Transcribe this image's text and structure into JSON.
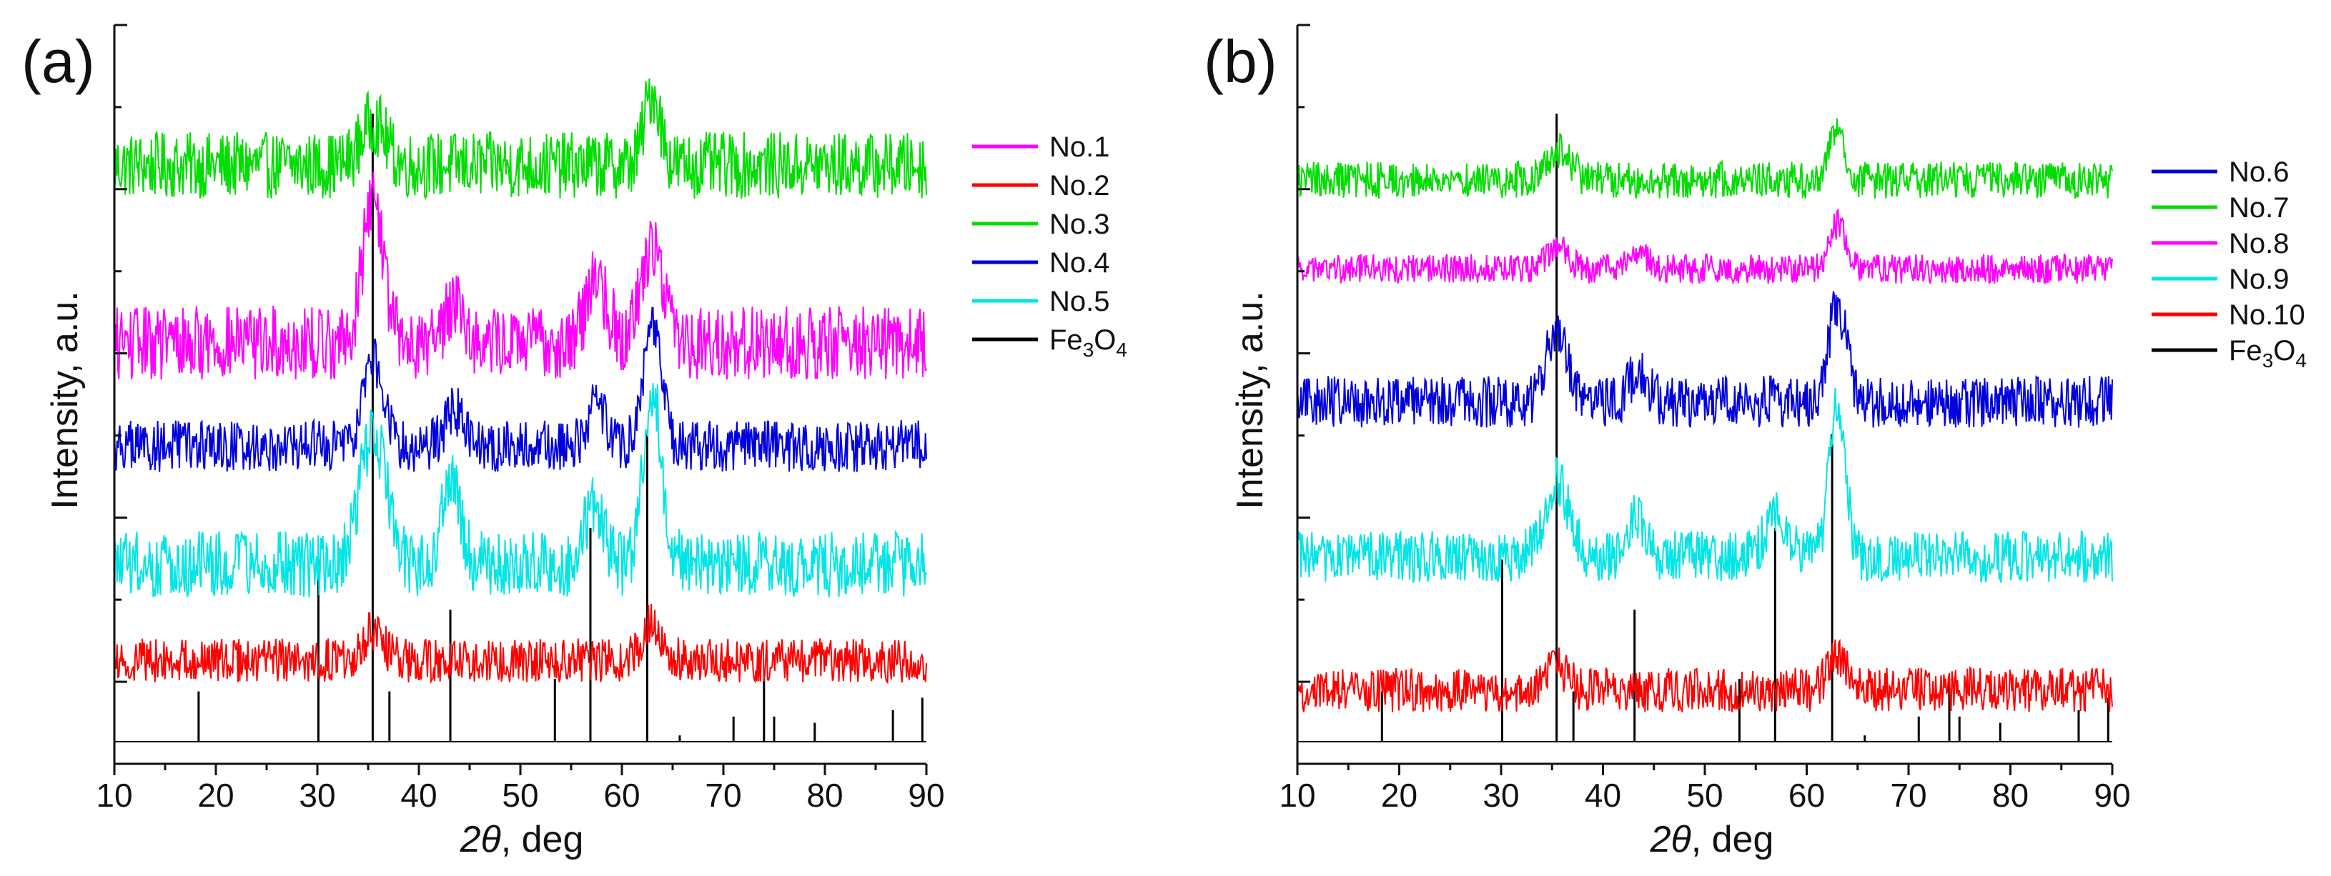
{
  "chart_data": [
    {
      "type": "line",
      "panel_label": "(a)",
      "xlabel": {
        "prefix": "2",
        "theta": "θ",
        "suffix": ", deg"
      },
      "ylabel": "Intensity, a.u.",
      "xlim": [
        10,
        90
      ],
      "ylim": [
        0,
        100
      ],
      "xticks": [
        "10",
        "20",
        "30",
        "40",
        "50",
        "60",
        "70",
        "80",
        "90"
      ],
      "x_tick_values": [
        10,
        20,
        30,
        40,
        50,
        60,
        70,
        80,
        90
      ],
      "legend": [
        {
          "name": "No.1",
          "color": "#ff00ff"
        },
        {
          "name": "No.2",
          "color": "#ff0000"
        },
        {
          "name": "No.3",
          "color": "#00dd00"
        },
        {
          "name": "No.4",
          "color": "#0000dd"
        },
        {
          "name": "No.5",
          "color": "#00e5e5"
        },
        {
          "name": "Fe3O4",
          "base": "Fe",
          "sub1": "3",
          "mid": "O",
          "sub2": "4",
          "color": "#000000"
        }
      ],
      "series": [
        {
          "name": "No.3",
          "color": "#00dd00",
          "baseline": 81,
          "noise": 4.5,
          "peaks": [
            [
              35.5,
              6,
              1.2
            ],
            [
              63,
              10,
              0.8
            ]
          ]
        },
        {
          "name": "No.1",
          "color": "#ff00ff",
          "baseline": 57,
          "noise": 5,
          "peaks": [
            [
              35.5,
              20,
              1.0
            ],
            [
              43.5,
              6,
              0.9
            ],
            [
              57.5,
              9,
              1.0
            ],
            [
              63,
              13,
              1.2
            ]
          ]
        },
        {
          "name": "No.4",
          "color": "#0000dd",
          "baseline": 43,
          "noise": 3.5,
          "peaks": [
            [
              35.5,
              12,
              1.0
            ],
            [
              43.5,
              5,
              0.9
            ],
            [
              57.5,
              6,
              0.9
            ],
            [
              63,
              16,
              0.9
            ]
          ]
        },
        {
          "name": "No.5",
          "color": "#00e5e5",
          "baseline": 27,
          "noise": 4.5,
          "peaks": [
            [
              35.5,
              18,
              1.3
            ],
            [
              43.2,
              12,
              0.9
            ],
            [
              57.2,
              8,
              0.9
            ],
            [
              63,
              24,
              0.9
            ]
          ]
        },
        {
          "name": "No.2",
          "color": "#ff0000",
          "baseline": 14,
          "noise": 3,
          "peaks": [
            [
              35.5,
              4,
              1.0
            ],
            [
              63,
              5,
              1.0
            ]
          ]
        }
      ],
      "reference": {
        "name": "Fe3O4",
        "color": "#000000",
        "baseline": 3,
        "peaks": [
          [
            18.3,
            8
          ],
          [
            30.1,
            29
          ],
          [
            35.45,
            100
          ],
          [
            37.1,
            8
          ],
          [
            43.1,
            21
          ],
          [
            53.4,
            10
          ],
          [
            56.9,
            34
          ],
          [
            62.5,
            49
          ],
          [
            65.7,
            1
          ],
          [
            71.0,
            4
          ],
          [
            74.0,
            10
          ],
          [
            75.0,
            4
          ],
          [
            79.0,
            3
          ],
          [
            86.7,
            5
          ],
          [
            89.6,
            7
          ]
        ]
      }
    },
    {
      "type": "line",
      "panel_label": "(b)",
      "xlabel": {
        "prefix": "2",
        "theta": "θ",
        "suffix": ", deg"
      },
      "ylabel": "Intensity, a.u.",
      "xlim": [
        10,
        90
      ],
      "ylim": [
        0,
        100
      ],
      "xticks": [
        "10",
        "20",
        "30",
        "40",
        "50",
        "60",
        "70",
        "80",
        "90"
      ],
      "x_tick_values": [
        10,
        20,
        30,
        40,
        50,
        60,
        70,
        80,
        90
      ],
      "legend": [
        {
          "name": "No.6",
          "color": "#0000dd"
        },
        {
          "name": "No.7",
          "color": "#00dd00"
        },
        {
          "name": "No.8",
          "color": "#ff00ff"
        },
        {
          "name": "No.9",
          "color": "#00e5e5"
        },
        {
          "name": "No.10",
          "color": "#ff0000"
        },
        {
          "name": "Fe3O4",
          "base": "Fe",
          "sub1": "3",
          "mid": "O",
          "sub2": "4",
          "color": "#000000"
        }
      ],
      "series": [
        {
          "name": "No.7",
          "color": "#00dd00",
          "baseline": 79,
          "noise": 2.5,
          "peaks": [
            [
              35.5,
              4,
              1.2
            ],
            [
              63,
              7,
              0.8
            ]
          ]
        },
        {
          "name": "No.8",
          "color": "#ff00ff",
          "baseline": 67,
          "noise": 2,
          "peaks": [
            [
              35.5,
              3,
              1.0
            ],
            [
              43.5,
              2,
              1.0
            ],
            [
              63,
              6,
              0.8
            ]
          ]
        },
        {
          "name": "No.6",
          "color": "#0000dd",
          "baseline": 49,
          "noise": 3.5,
          "peaks": [
            [
              35.5,
              10,
              1.0
            ],
            [
              43.5,
              4,
              0.9
            ],
            [
              63,
              13,
              0.9
            ]
          ]
        },
        {
          "name": "No.9",
          "color": "#00e5e5",
          "baseline": 28,
          "noise": 3.5,
          "peaks": [
            [
              35.5,
              10,
              1.2
            ],
            [
              43.2,
              6,
              0.9
            ],
            [
              57,
              6,
              1.0
            ],
            [
              63,
              20,
              0.8
            ]
          ]
        },
        {
          "name": "No.10",
          "color": "#ff0000",
          "baseline": 10,
          "noise": 3,
          "peaks": [
            [
              35.5,
              3,
              1.0
            ],
            [
              63,
              5,
              0.9
            ]
          ]
        }
      ],
      "reference": {
        "name": "Fe3O4",
        "color": "#000000",
        "baseline": 3,
        "peaks": [
          [
            18.3,
            8
          ],
          [
            30.1,
            29
          ],
          [
            35.45,
            100
          ],
          [
            37.1,
            8
          ],
          [
            43.1,
            21
          ],
          [
            53.4,
            10
          ],
          [
            56.9,
            34
          ],
          [
            62.5,
            49
          ],
          [
            65.7,
            1
          ],
          [
            71.0,
            4
          ],
          [
            74.0,
            10
          ],
          [
            75.0,
            4
          ],
          [
            79.0,
            3
          ],
          [
            86.7,
            5
          ],
          [
            89.6,
            7
          ]
        ]
      }
    }
  ]
}
